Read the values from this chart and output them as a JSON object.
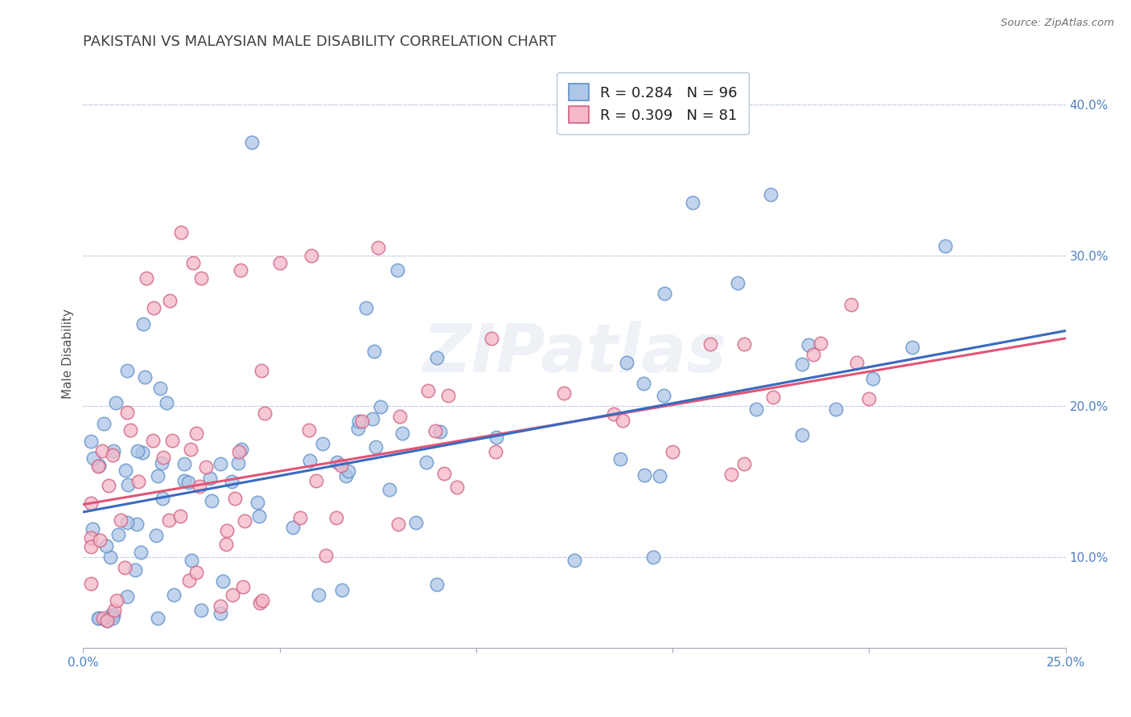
{
  "title": "PAKISTANI VS MALAYSIAN MALE DISABILITY CORRELATION CHART",
  "source": "Source: ZipAtlas.com",
  "ylabel": "Male Disability",
  "xlim": [
    0.0,
    0.25
  ],
  "ylim": [
    0.04,
    0.43
  ],
  "yticks": [
    0.1,
    0.2,
    0.3,
    0.4
  ],
  "ytick_labels": [
    "10.0%",
    "20.0%",
    "30.0%",
    "40.0%"
  ],
  "color_pakistani_face": "#aec6e8",
  "color_pakistani_edge": "#6090c8",
  "color_malaysian_face": "#f4b8c8",
  "color_malaysian_edge": "#d06080",
  "color_line_pakistani": "#3a6abf",
  "color_line_malaysian": "#e05575",
  "color_line_dashed": "#90aad0",
  "background_color": "#ffffff",
  "title_color": "#404040",
  "title_fontsize": 13,
  "grid_color": "#c8d4e8",
  "axis_color": "#a0a8b8",
  "tick_label_color": "#5080c0",
  "watermark": "ZIPatlas",
  "legend_line1": "R = 0.284   N = 96",
  "legend_line2": "R = 0.309   N = 81"
}
